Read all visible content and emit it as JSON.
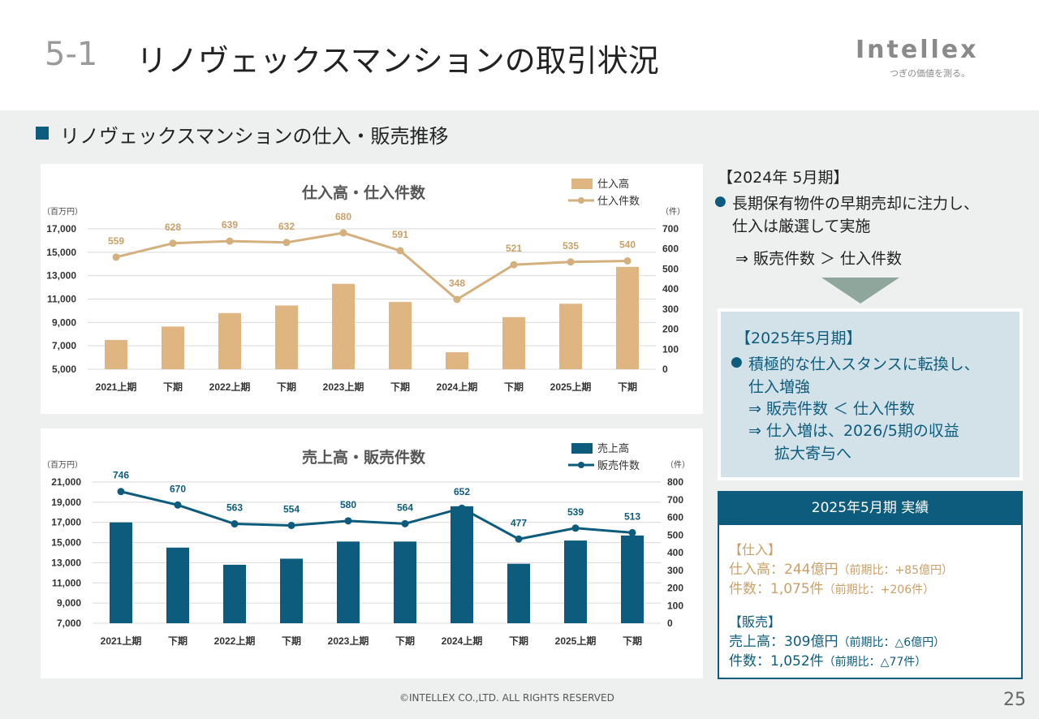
{
  "header": {
    "slide_no": "5-1",
    "title": "リノヴェックスマンションの取引状況",
    "logo_text": "Intellex",
    "logo_tagline": "つぎの価値を測る。"
  },
  "section": {
    "title": "リノヴェックスマンションの仕入・販売推移"
  },
  "colors": {
    "purchase_bar": "#dfb682",
    "purchase_line": "#d4b07e",
    "sales_bar": "#0e5c7d",
    "sales_line": "#0e5c7d",
    "accent": "#0e5c7d",
    "gold_text": "#c9a06a"
  },
  "chart_data": [
    {
      "type": "bar+line",
      "title": "仕入高・仕入件数",
      "y_left_label": "（百万円）",
      "y_right_label": "（件）",
      "categories": [
        "2021上期",
        "下期",
        "2022上期",
        "下期",
        "2023上期",
        "下期",
        "2024上期",
        "下期",
        "2025上期",
        "下期"
      ],
      "bar_series": {
        "name": "仕入高",
        "values": [
          7500,
          8650,
          9800,
          10450,
          12300,
          10750,
          6450,
          9450,
          10600,
          13750
        ]
      },
      "line_series": {
        "name": "仕入件数",
        "values": [
          559,
          628,
          639,
          632,
          680,
          591,
          348,
          521,
          535,
          540
        ]
      },
      "y_left_ticks": [
        "5,000",
        "7,000",
        "9,000",
        "11,000",
        "13,000",
        "15,000",
        "17,000"
      ],
      "y_left_range": [
        5000,
        17000
      ],
      "y_right_ticks": [
        "0",
        "100",
        "200",
        "300",
        "400",
        "500",
        "600",
        "700"
      ],
      "y_right_range": [
        0,
        700
      ]
    },
    {
      "type": "bar+line",
      "title": "売上高・販売件数",
      "y_left_label": "（百万円）",
      "y_right_label": "（件）",
      "categories": [
        "2021上期",
        "下期",
        "2022上期",
        "下期",
        "2023上期",
        "下期",
        "2024上期",
        "下期",
        "2025上期",
        "下期"
      ],
      "bar_series": {
        "name": "売上高",
        "values": [
          17000,
          14500,
          12800,
          13400,
          15100,
          15100,
          18600,
          12900,
          15200,
          15700
        ]
      },
      "line_series": {
        "name": "販売件数",
        "values": [
          746,
          670,
          563,
          554,
          580,
          564,
          652,
          477,
          539,
          513
        ]
      },
      "y_left_ticks": [
        "7,000",
        "9,000",
        "11,000",
        "13,000",
        "15,000",
        "17,000",
        "19,000",
        "21,000"
      ],
      "y_left_range": [
        7000,
        21000
      ],
      "y_right_ticks": [
        "0",
        "100",
        "200",
        "300",
        "400",
        "500",
        "600",
        "700",
        "800"
      ],
      "y_right_range": [
        0,
        800
      ]
    }
  ],
  "side": {
    "fy2024_heading": "【2024年 5月期】",
    "fy2024_bullet_line1": "長期保有物件の早期売却に注力し、",
    "fy2024_bullet_line2": "仕入は厳選して実施",
    "fy2024_arrow": "⇒ 販売件数 ＞ 仕入件数",
    "fy2025_heading": "【2025年5月期】",
    "fy2025_bullet_line1": "積極的な仕入スタンスに転換し、",
    "fy2025_bullet_line2": "仕入増強",
    "fy2025_arrow1": "⇒ 販売件数 ＜ 仕入件数",
    "fy2025_arrow2": "⇒ 仕入増は、2026/5期の収益",
    "fy2025_arrow2_cont": "拡大寄与へ"
  },
  "results": {
    "title": "2025年5月期 実績",
    "purchase_heading": "【仕入】",
    "purchase_amount": "仕入高：244億円",
    "purchase_amount_note": "（前期比：+85億円）",
    "purchase_count": "件数：1,075件",
    "purchase_count_note": "（前期比：+206件）",
    "sales_heading": "【販売】",
    "sales_amount": "売上高：309億円",
    "sales_amount_note": "（前期比：△6億円）",
    "sales_count": "件数：1,052件",
    "sales_count_note": "（前期比：△77件）"
  },
  "footer": {
    "copyright": "©INTELLEX CO.,LTD. ALL RIGHTS RESERVED",
    "page": "25"
  }
}
